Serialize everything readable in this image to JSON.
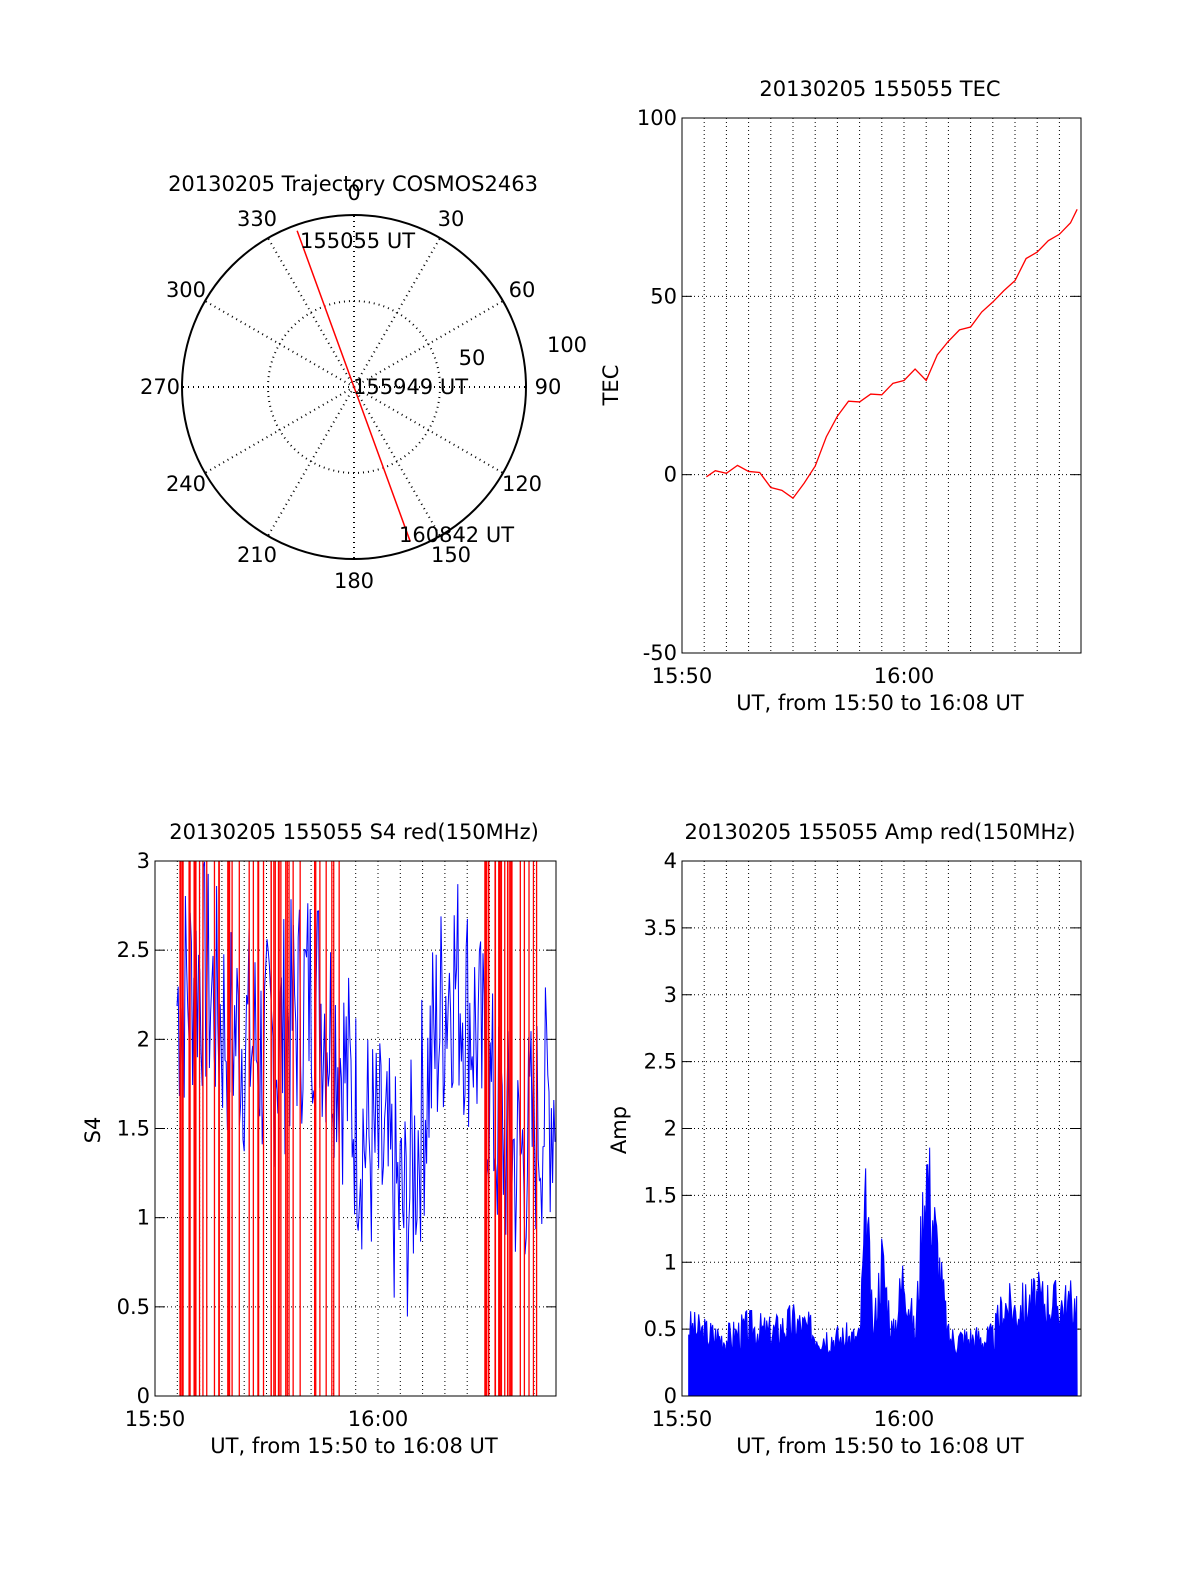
{
  "colors": {
    "red": "#ff0000",
    "blue": "#0000ff",
    "axis": "#000000",
    "grid": "#000000"
  },
  "chart_data": [
    {
      "id": "trajectory",
      "type": "polar",
      "title": "20130205 Trajectory COSMOS2463",
      "angle_labels": [
        "0",
        "30",
        "60",
        "90",
        "120",
        "150",
        "180",
        "210",
        "240",
        "270",
        "300",
        "330"
      ],
      "angles_deg": [
        0,
        30,
        60,
        90,
        120,
        150,
        180,
        210,
        240,
        270,
        300,
        330
      ],
      "radial_labels": [
        "50",
        "100"
      ],
      "radial_values": [
        50,
        100
      ],
      "rlim": [
        0,
        100
      ],
      "track": {
        "color": "red",
        "points": [
          {
            "azimuth_deg": 340,
            "zenith_deg": 87,
            "label": "155055 UT"
          },
          {
            "azimuth_deg": 0,
            "zenith_deg": 0,
            "label": "155949 UT"
          },
          {
            "azimuth_deg": 160,
            "zenith_deg": 86,
            "label": "160842 UT"
          }
        ]
      }
    },
    {
      "id": "tec",
      "type": "line",
      "title": "20130205 155055 TEC",
      "xlabel": "UT, from 15:50 to 16:08 UT",
      "ylabel": "TEC",
      "x_tick_labels": [
        "15:50",
        "16:00"
      ],
      "y_tick_labels": [
        "-50",
        "0",
        "50",
        "100"
      ],
      "ylim": [
        -50,
        100
      ],
      "xlim_minutes_after_1550": [
        0,
        17.8
      ],
      "series": [
        {
          "color": "red",
          "x_minutes_after_1550": [
            1.1,
            1.5,
            2.0,
            2.5,
            3.0,
            3.5,
            4.0,
            4.5,
            5.0,
            5.5,
            6.0,
            6.5,
            7.0,
            7.5,
            8.0,
            8.5,
            9.0,
            9.5,
            10.0,
            10.5,
            11.0,
            11.5,
            12.0,
            12.5,
            13.0,
            13.5,
            14.0,
            14.5,
            15.0,
            15.5,
            16.0,
            16.5,
            17.0,
            17.5,
            17.8
          ],
          "values": [
            0,
            0.5,
            1,
            2,
            1.5,
            0,
            -3,
            -5,
            -6,
            -3,
            3,
            10,
            17,
            20,
            21,
            22,
            23,
            25,
            27,
            29,
            27,
            33,
            38,
            40,
            42,
            45,
            49,
            51,
            55,
            60,
            63,
            65,
            68,
            70,
            75
          ]
        }
      ]
    },
    {
      "id": "s4",
      "type": "line",
      "title": "20130205 155055 S4 red(150MHz)",
      "xlabel": "UT, from 15:50 to 16:08 UT",
      "ylabel": "S4",
      "x_tick_labels": [
        "15:50",
        "16:00"
      ],
      "y_tick_labels": [
        "0",
        "0.5",
        "1",
        "1.5",
        "2",
        "2.5",
        "3"
      ],
      "ylim": [
        0,
        3
      ],
      "xlim_minutes_after_1550": [
        0,
        8.3
      ],
      "series": [
        {
          "color": "blue",
          "x_minutes_after_1550": [
            0,
            0.5,
            1,
            1.5,
            2,
            2.5,
            3,
            3.5,
            4,
            4.5,
            5,
            5.5,
            6,
            6.5,
            7,
            7.5,
            8,
            8.3
          ],
          "values": [
            2.2,
            2.4,
            2.1,
            2.0,
            1.9,
            2.1,
            2.3,
            2.0,
            1.5,
            1.3,
            1.0,
            1.8,
            2.4,
            2.1,
            1.5,
            1.3,
            1.6,
            1.7
          ]
        },
        {
          "color": "red",
          "x_minutes_after_1550": [
            0.1,
            0.3,
            0.6,
            1.0,
            1.4,
            1.8,
            2.2,
            2.6,
            3.1,
            3.5,
            6.7,
            7.0,
            7.3,
            7.6,
            7.9,
            8.1
          ],
          "values": [
            3,
            0,
            3,
            0,
            3,
            0,
            3,
            0,
            3,
            0,
            3,
            0,
            3,
            0,
            3,
            0
          ]
        }
      ]
    },
    {
      "id": "amp",
      "type": "line",
      "title": "20130205 155055 Amp red(150MHz)",
      "xlabel": "UT, from 15:50 to 16:08 UT",
      "ylabel": "Amp",
      "x_tick_labels": [
        "15:50",
        "16:00"
      ],
      "y_tick_labels": [
        "0",
        "0.5",
        "1",
        "1.5",
        "2",
        "2.5",
        "3",
        "3.5",
        "4"
      ],
      "ylim": [
        0,
        4
      ],
      "xlim_minutes_after_1550": [
        0,
        17.8
      ],
      "series": [
        {
          "color": "blue",
          "x_minutes_after_1550": [
            0.3,
            1,
            2,
            3,
            4,
            5,
            6,
            7,
            8,
            8.3,
            8.6,
            9,
            9.5,
            10,
            10.5,
            11,
            12,
            13,
            14,
            14.5,
            15,
            16,
            17,
            17.8
          ],
          "values": [
            0.6,
            0.55,
            0.5,
            0.6,
            0.55,
            0.65,
            0.55,
            0.5,
            0.5,
            1.7,
            0.5,
            1.2,
            0.5,
            1.1,
            0.5,
            2.05,
            0.5,
            0.5,
            0.5,
            0.8,
            0.75,
            0.85,
            0.8,
            0.8
          ]
        }
      ]
    }
  ]
}
